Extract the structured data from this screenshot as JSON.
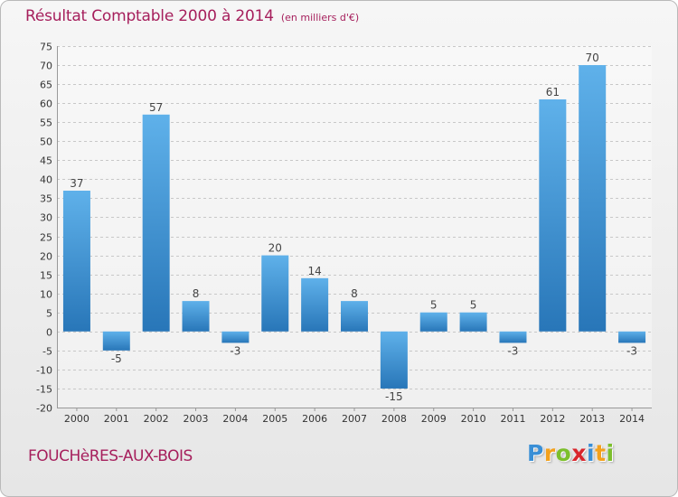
{
  "header": {
    "title": "Résultat Comptable 2000 à 2014",
    "unit": "(en milliers d'€)"
  },
  "footer": {
    "commune": "FOUCHèRES-AUX-BOIS",
    "logo_letters": [
      "P",
      "r",
      "o",
      "x",
      "i",
      "t",
      "i"
    ],
    "logo_colors": [
      "#3a8fd6",
      "#f3a11d",
      "#7cbf2c",
      "#d9262c",
      "#3a8fd6",
      "#f3a11d",
      "#7cbf2c"
    ]
  },
  "colors": {
    "bar_top": "#5fb1ea",
    "bar_bottom": "#2876b8",
    "grid": "#c8c8c8",
    "title": "#a61f5c"
  },
  "chart_data": {
    "type": "bar",
    "categories": [
      "2000",
      "2001",
      "2002",
      "2003",
      "2004",
      "2005",
      "2006",
      "2007",
      "2008",
      "2009",
      "2010",
      "2011",
      "2012",
      "2013",
      "2014"
    ],
    "values": [
      37,
      -5,
      57,
      8,
      -3,
      20,
      14,
      8,
      -15,
      5,
      5,
      -3,
      61,
      70,
      -3
    ],
    "ylim": [
      -20,
      75
    ],
    "yticks": [
      -20,
      -15,
      -10,
      -5,
      0,
      5,
      10,
      15,
      20,
      25,
      30,
      35,
      40,
      45,
      50,
      55,
      60,
      65,
      70,
      75
    ],
    "grid": true,
    "legend": "none"
  }
}
